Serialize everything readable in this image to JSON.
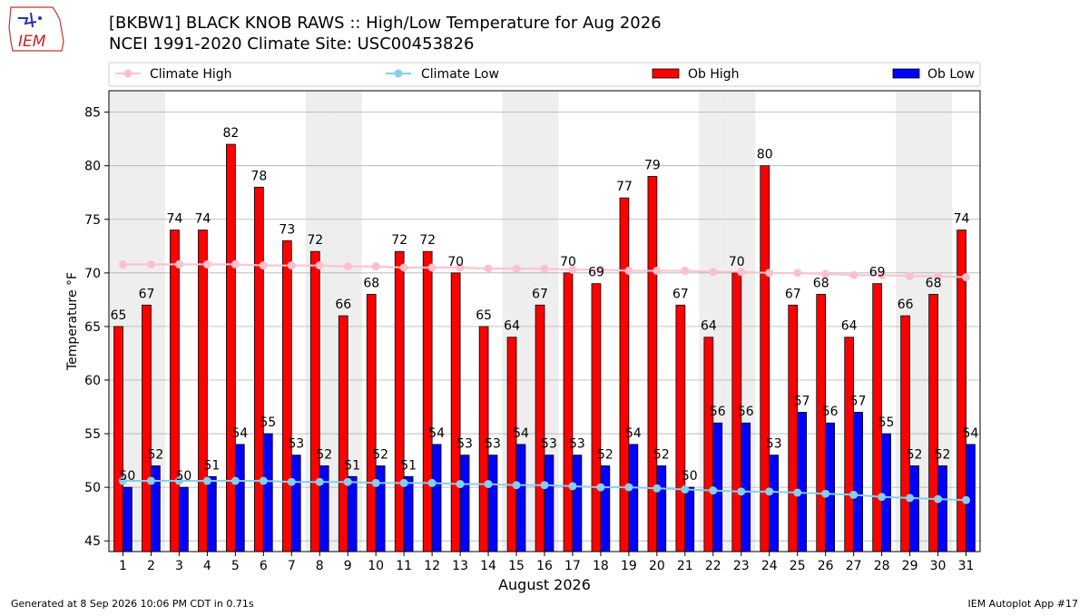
{
  "header": {
    "title_line1": "[BKBW1] BLACK KNOB RAWS :: High/Low Temperature for Aug 2026",
    "title_line2": "NCEI 1991-2020 Climate Site: USC00453826",
    "logo_text": "IEM"
  },
  "footer": {
    "left": "Generated at 8 Sep 2026 10:06 PM CDT in 0.71s",
    "right": "IEM Autoplot App #17"
  },
  "colors": {
    "ob_high": "#ff0000",
    "ob_low": "#0000ff",
    "climate_high": "#ffc0cb",
    "climate_low": "#87ceeb",
    "weekend_band": "#eeeeee"
  },
  "chart_data": {
    "type": "bar",
    "xlabel": "August 2026",
    "ylabel": "Temperature °F",
    "ylim": [
      44,
      87
    ],
    "yticks": [
      45,
      50,
      55,
      60,
      65,
      70,
      75,
      80,
      85
    ],
    "grid": true,
    "legend_position": "top",
    "categories": [
      "1",
      "2",
      "3",
      "4",
      "5",
      "6",
      "7",
      "8",
      "9",
      "10",
      "11",
      "12",
      "13",
      "14",
      "15",
      "16",
      "17",
      "18",
      "19",
      "20",
      "21",
      "22",
      "23",
      "24",
      "25",
      "26",
      "27",
      "28",
      "29",
      "30",
      "31"
    ],
    "shaded_days": [
      1,
      2,
      8,
      9,
      15,
      16,
      22,
      23,
      29,
      30
    ],
    "series": [
      {
        "name": "Ob High",
        "kind": "bar",
        "values": [
          65,
          67,
          74,
          74,
          82,
          78,
          73,
          72,
          66,
          68,
          72,
          72,
          70,
          65,
          64,
          67,
          70,
          69,
          77,
          79,
          67,
          64,
          70,
          80,
          67,
          68,
          64,
          69,
          66,
          68,
          74
        ]
      },
      {
        "name": "Ob Low",
        "kind": "bar",
        "values": [
          50,
          52,
          50,
          51,
          54,
          55,
          53,
          52,
          51,
          52,
          51,
          54,
          53,
          53,
          54,
          53,
          53,
          52,
          54,
          52,
          50,
          56,
          56,
          53,
          57,
          56,
          57,
          55,
          52,
          52,
          54
        ]
      },
      {
        "name": "Climate High",
        "kind": "line",
        "values": [
          70.8,
          70.8,
          70.8,
          70.8,
          70.8,
          70.7,
          70.7,
          70.7,
          70.6,
          70.6,
          70.5,
          70.5,
          70.5,
          70.4,
          70.4,
          70.4,
          70.3,
          70.3,
          70.2,
          70.2,
          70.2,
          70.1,
          70.1,
          70.0,
          70.0,
          69.9,
          69.8,
          69.8,
          69.7,
          69.7,
          69.6
        ]
      },
      {
        "name": "Climate Low",
        "kind": "line",
        "values": [
          50.6,
          50.6,
          50.6,
          50.6,
          50.6,
          50.6,
          50.5,
          50.5,
          50.5,
          50.4,
          50.4,
          50.4,
          50.3,
          50.3,
          50.2,
          50.2,
          50.1,
          50.0,
          50.0,
          49.9,
          49.8,
          49.7,
          49.6,
          49.6,
          49.5,
          49.4,
          49.3,
          49.1,
          49.0,
          48.9,
          48.8
        ]
      }
    ]
  }
}
